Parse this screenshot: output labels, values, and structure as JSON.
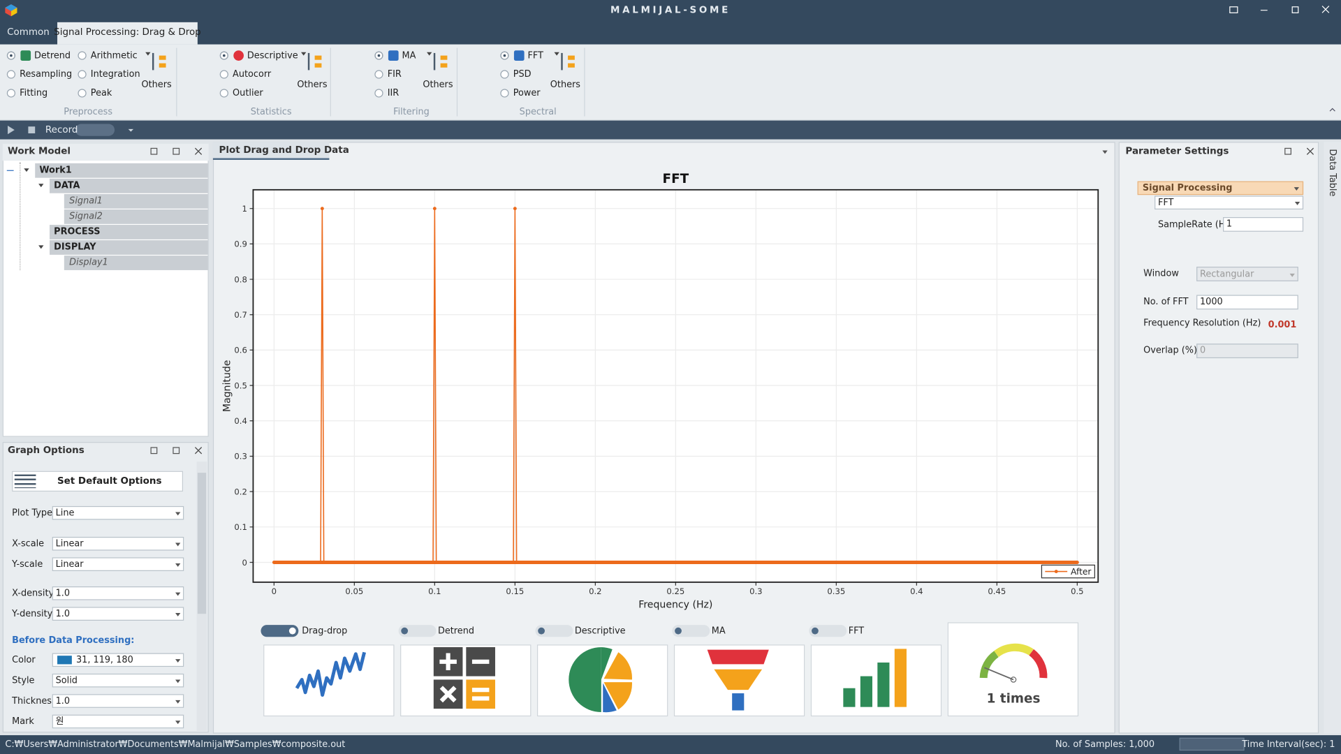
{
  "window": {
    "title": "MALMIJAL-SOME"
  },
  "tabs": [
    "Common",
    "Signal Processing: Drag & Drop"
  ],
  "ribbon": {
    "groups": [
      {
        "label": "Preprocess",
        "items": [
          "Detrend",
          "Arithmetic",
          "Resampling",
          "Integration",
          "Fitting",
          "Peak"
        ],
        "others": "Others"
      },
      {
        "label": "Statistics",
        "items": [
          "Descriptive",
          "Autocorr",
          "Outlier"
        ],
        "others": "Others"
      },
      {
        "label": "Filtering",
        "items": [
          "MA",
          "FIR",
          "IIR"
        ],
        "others": "Others"
      },
      {
        "label": "Spectral",
        "items": [
          "FFT",
          "PSD",
          "Power"
        ],
        "others": "Others"
      }
    ]
  },
  "toolbar": {
    "record": "Record"
  },
  "work_model": {
    "title": "Work Model",
    "tree": [
      "Work1",
      "DATA",
      "Signal1",
      "Signal2",
      "PROCESS",
      "DISPLAY",
      "Display1"
    ]
  },
  "graph_options": {
    "title": "Graph Options",
    "button": "Set Default Options",
    "rows": [
      [
        "Plot Type",
        "Line"
      ],
      [
        "X-scale",
        "Linear"
      ],
      [
        "Y-scale",
        "Linear"
      ],
      [
        "X-density",
        "1.0"
      ],
      [
        "Y-density",
        "1.0"
      ]
    ],
    "section": "Before Data Processing:",
    "rows2": [
      [
        "Color",
        "31, 119, 180"
      ],
      [
        "Style",
        "Solid"
      ],
      [
        "Thickness",
        "1.0"
      ],
      [
        "Mark",
        "원"
      ]
    ]
  },
  "plot_panel": {
    "tab": "Plot Drag and Drop Data"
  },
  "chart_data": {
    "type": "line",
    "title": "FFT",
    "x_label": "Frequency (Hz)",
    "y_label": "Magnitude",
    "x": [
      0,
      0.029,
      0.03,
      0.031,
      0.099,
      0.1,
      0.101,
      0.149,
      0.15,
      0.151,
      0.5
    ],
    "series": [
      {
        "name": "After",
        "color": "#ec6a1c",
        "values": [
          0,
          0,
          1,
          0,
          0,
          1,
          0,
          0,
          1,
          0,
          0
        ]
      }
    ],
    "xlim": [
      -0.013,
      0.513
    ],
    "xticks": [
      0,
      0.05,
      0.1,
      0.15,
      0.2,
      0.25,
      0.3,
      0.35,
      0.4,
      0.45,
      0.5
    ],
    "ylim": [
      -0.056,
      1.053
    ],
    "yticks": [
      0,
      0.1,
      0.2,
      0.3,
      0.4,
      0.5,
      0.6,
      0.7,
      0.8,
      0.9,
      1
    ],
    "grid": true,
    "legend": "lower right"
  },
  "processing": {
    "steps": [
      "Drag-drop",
      "Detrend",
      "Descriptive",
      "MA",
      "FFT"
    ],
    "counter": "1 times"
  },
  "parameters": {
    "title": "Parameter Settings",
    "section": "Signal Processing",
    "method": "FFT",
    "fields": [
      [
        "SampleRate (Hz)",
        "1"
      ],
      [
        "Window",
        "Rectangular"
      ],
      [
        "No. of FFT",
        "1000"
      ],
      [
        "Frequency Resolution (Hz)",
        "0.001"
      ],
      [
        "Overlap (%)",
        "0"
      ]
    ]
  },
  "side_tab": "Data Table",
  "status": {
    "path": "C:₩Users₩Administrator₩Documents₩Malmijal₩Samples₩composite.out",
    "samples": "No. of Samples: 1,000",
    "interval": "Time Interval(sec): 1"
  }
}
